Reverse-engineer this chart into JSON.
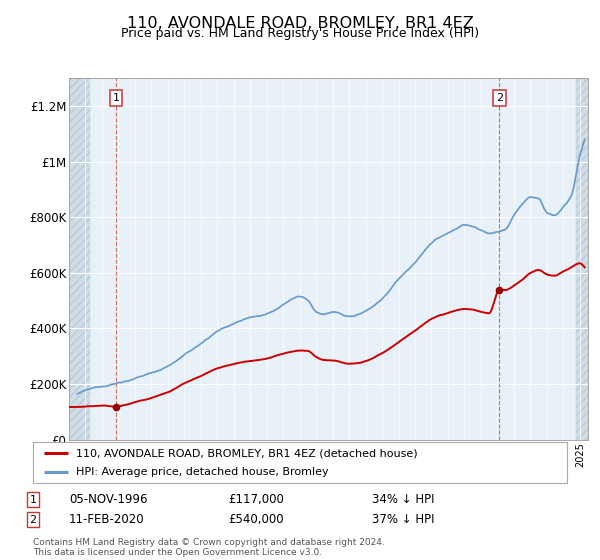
{
  "title": "110, AVONDALE ROAD, BROMLEY, BR1 4EZ",
  "subtitle": "Price paid vs. HM Land Registry's House Price Index (HPI)",
  "ylim": [
    0,
    1300000
  ],
  "yticks": [
    0,
    200000,
    400000,
    600000,
    800000,
    1000000,
    1200000
  ],
  "ytick_labels": [
    "£0",
    "£200K",
    "£400K",
    "£600K",
    "£800K",
    "£1M",
    "£1.2M"
  ],
  "plot_bg": "#e8f0f8",
  "grid_color": "#ffffff",
  "legend_label_red": "110, AVONDALE ROAD, BROMLEY, BR1 4EZ (detached house)",
  "legend_label_blue": "HPI: Average price, detached house, Bromley",
  "footer": "Contains HM Land Registry data © Crown copyright and database right 2024.\nThis data is licensed under the Open Government Licence v3.0.",
  "annotation1_date": "05-NOV-1996",
  "annotation1_price": "£117,000",
  "annotation1_pct": "34% ↓ HPI",
  "annotation2_date": "11-FEB-2020",
  "annotation2_price": "£540,000",
  "annotation2_pct": "37% ↓ HPI",
  "sale1_x": 1996.85,
  "sale1_y": 117000,
  "sale2_x": 2020.12,
  "sale2_y": 540000,
  "red_line_color": "#cc0000",
  "blue_line_color": "#6699cc",
  "marker_color": "#990000",
  "xmin": 1994.0,
  "xmax": 2025.5,
  "hatch_x1": 1995.3,
  "hatch_x2": 2024.8
}
